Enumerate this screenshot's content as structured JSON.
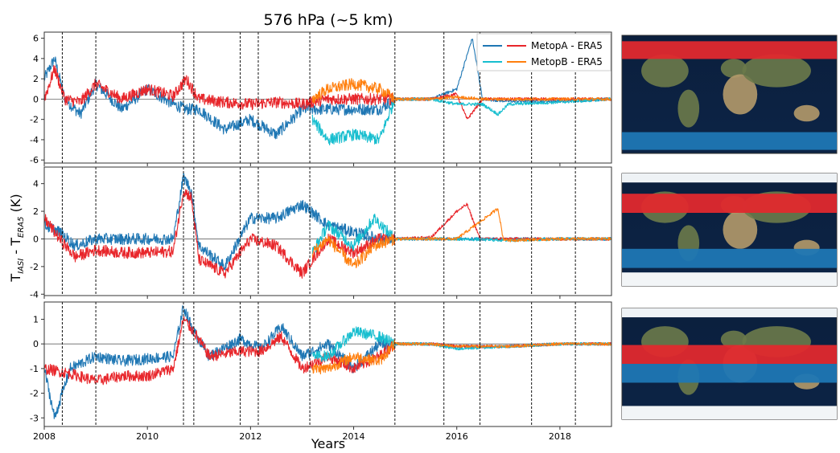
{
  "title": "576 hPa (~5 km)",
  "xlabel": "Years",
  "ylabel": "T",
  "ylabel_sub1": "IASI",
  "ylabel_mid": " - T",
  "ylabel_sub2": "ERA5",
  "ylabel_unit": " (K)",
  "colors": {
    "metopa_sh": "#1f77b4",
    "metopa_nh": "#e8262b",
    "metopb_sh": "#17becf",
    "metopb_nh": "#ff7f0e",
    "band_red": "#e0292e",
    "band_blue": "#1f77b4"
  },
  "chart_data": [
    {
      "type": "line",
      "xlim": [
        2008,
        2019
      ],
      "ylim": [
        -6.3,
        6.6
      ],
      "yticks": [
        6,
        4,
        2,
        0,
        -2,
        -4,
        -6
      ],
      "xticks": [
        2008,
        2010,
        2012,
        2014,
        2016,
        2018
      ],
      "vlines": [
        2008.35,
        2009.0,
        2010.7,
        2010.9,
        2011.8,
        2012.15,
        2013.15,
        2014.8,
        2015.75,
        2016.45,
        2017.45,
        2018.3
      ],
      "legend": {
        "placement": "top-right",
        "entries": [
          "MetopA - ERA5",
          "MetopB - ERA5"
        ]
      },
      "series": [
        {
          "name": "MetopA - ERA5",
          "x": [
            2008,
            2008.2,
            2008.4,
            2008.7,
            2009,
            2009.5,
            2010,
            2010.5,
            2010.75,
            2011,
            2011.5,
            2012,
            2012.5,
            2013,
            2013.5,
            2014,
            2014.5,
            2014.8,
            2015.5,
            2016,
            2016.3,
            2016.5,
            2017,
            2018,
            2019
          ],
          "values": [
            2,
            4,
            0,
            -1.5,
            1.5,
            -1,
            1,
            -0.5,
            -1,
            -1,
            -3,
            -2,
            -3.5,
            -1,
            -1,
            -1,
            -1,
            0,
            0,
            1,
            6,
            0,
            -0.2,
            -0.2,
            0
          ]
        },
        {
          "name": "MetopA - ERA5",
          "x": [
            2008,
            2008.2,
            2008.4,
            2008.7,
            2009,
            2009.5,
            2010,
            2010.5,
            2010.75,
            2011,
            2011.5,
            2012,
            2012.5,
            2013,
            2013.5,
            2014,
            2014.5,
            2014.8,
            2015.5,
            2016,
            2016.2,
            2016.5,
            2017,
            2018,
            2019
          ],
          "values": [
            0,
            3,
            0,
            -0.3,
            1.5,
            0,
            1,
            0.3,
            2,
            0,
            -0.3,
            -0.5,
            -0.3,
            -0.5,
            0,
            0,
            0,
            0,
            0,
            0.5,
            -2,
            0,
            0,
            0,
            0
          ]
        },
        {
          "name": "MetopB - ERA5",
          "x": [
            2013.2,
            2013.5,
            2014,
            2014.5,
            2014.8,
            2015.5,
            2016,
            2016.5,
            2016.8,
            2017,
            2018,
            2019
          ],
          "values": [
            -2,
            -4,
            -3.5,
            -4,
            0,
            0,
            -0.5,
            -0.5,
            -1.5,
            -0.5,
            -0.3,
            0
          ]
        },
        {
          "name": "MetopB - ERA5",
          "x": [
            2013.2,
            2013.5,
            2014,
            2014.5,
            2014.8,
            2015.5,
            2016,
            2016.5,
            2017,
            2018,
            2019
          ],
          "values": [
            0,
            1,
            1.5,
            1,
            0,
            0,
            0.2,
            0,
            0,
            0,
            0
          ]
        }
      ]
    },
    {
      "type": "line",
      "xlim": [
        2008,
        2019
      ],
      "ylim": [
        -4.1,
        5.2
      ],
      "yticks": [
        4,
        2,
        0,
        -2,
        -4
      ],
      "xticks": [
        2008,
        2010,
        2012,
        2014,
        2016,
        2018
      ],
      "vlines": [
        2008.35,
        2009.0,
        2010.7,
        2010.9,
        2011.8,
        2012.15,
        2013.15,
        2014.8,
        2015.75,
        2016.45,
        2017.45,
        2018.3
      ],
      "series": [
        {
          "name": "MetopA - ERA5",
          "x": [
            2008,
            2008.3,
            2008.6,
            2009,
            2009.5,
            2010,
            2010.5,
            2010.7,
            2010.85,
            2011,
            2011.5,
            2012,
            2012.5,
            2013,
            2013.5,
            2014,
            2014.5,
            2014.8,
            2015.5,
            2016,
            2016.5,
            2017,
            2018,
            2019
          ],
          "values": [
            1,
            0.5,
            -0.5,
            0,
            0,
            0,
            0,
            4.5,
            3.5,
            -0.5,
            -2,
            1.5,
            1.5,
            2.5,
            1,
            0.5,
            0,
            0,
            0,
            0,
            0,
            0,
            0,
            0
          ]
        },
        {
          "name": "MetopA - ERA5",
          "x": [
            2008,
            2008.3,
            2008.6,
            2009,
            2009.5,
            2010,
            2010.5,
            2010.7,
            2010.85,
            2011,
            2011.5,
            2012,
            2012.5,
            2013,
            2013.5,
            2014,
            2014.5,
            2014.8,
            2015.5,
            2016,
            2016.2,
            2016.45,
            2017,
            2018,
            2019
          ],
          "values": [
            1.5,
            0,
            -1.3,
            -0.8,
            -1,
            -1,
            -0.9,
            3.5,
            3,
            -1.5,
            -2.5,
            0,
            -0.5,
            -2.5,
            0,
            -1,
            0,
            0,
            0.1,
            2,
            2.5,
            0,
            0,
            0,
            0
          ]
        },
        {
          "name": "MetopB - ERA5",
          "x": [
            2013.2,
            2013.5,
            2014,
            2014.4,
            2014.8,
            2015.5,
            2016,
            2017,
            2018,
            2019
          ],
          "values": [
            -1,
            1,
            -0.5,
            1.5,
            0,
            0,
            0,
            -0.1,
            0,
            0
          ]
        },
        {
          "name": "MetopB - ERA5",
          "x": [
            2013.2,
            2013.5,
            2014,
            2014.4,
            2014.8,
            2015.5,
            2016,
            2016.8,
            2016.9,
            2017,
            2018,
            2019
          ],
          "values": [
            -1,
            0,
            -2,
            -0.5,
            0,
            0,
            0,
            2.2,
            0,
            -0.1,
            0,
            0
          ]
        }
      ]
    },
    {
      "type": "line",
      "xlim": [
        2008,
        2019
      ],
      "ylim": [
        -3.35,
        1.7
      ],
      "yticks": [
        1,
        0,
        -1,
        -2,
        -3
      ],
      "xticks": [
        2008,
        2010,
        2012,
        2014,
        2016,
        2018
      ],
      "vlines": [
        2008.35,
        2009.0,
        2010.7,
        2010.9,
        2011.8,
        2012.15,
        2013.15,
        2014.8,
        2015.75,
        2016.45,
        2017.45,
        2018.3
      ],
      "series": [
        {
          "name": "MetopA - ERA5",
          "x": [
            2008,
            2008.2,
            2008.5,
            2009,
            2009.5,
            2010,
            2010.5,
            2010.7,
            2010.9,
            2011.2,
            2011.8,
            2012.2,
            2012.6,
            2013,
            2013.5,
            2014,
            2014.5,
            2014.8,
            2015.5,
            2016,
            2017,
            2018,
            2019
          ],
          "values": [
            -1,
            -3,
            -1,
            -0.5,
            -0.7,
            -0.6,
            -0.5,
            1.5,
            0.5,
            -0.5,
            0.2,
            -0.2,
            0.7,
            -0.5,
            0,
            -1,
            0,
            0,
            0,
            -0.1,
            -0.1,
            0,
            0
          ]
        },
        {
          "name": "MetopA - ERA5",
          "x": [
            2008,
            2008.5,
            2009,
            2009.5,
            2010,
            2010.5,
            2010.7,
            2010.9,
            2011.2,
            2011.8,
            2012.2,
            2012.6,
            2013,
            2013.5,
            2014,
            2014.5,
            2014.8,
            2015.5,
            2016,
            2017,
            2018,
            2019
          ],
          "values": [
            -1,
            -1.2,
            -1.5,
            -1.3,
            -1.3,
            -1,
            1,
            0.5,
            -0.5,
            -0.3,
            -0.3,
            0.3,
            -1,
            -0.5,
            -1,
            -0.5,
            0,
            0,
            -0.1,
            -0.1,
            0,
            0
          ]
        },
        {
          "name": "MetopB - ERA5",
          "x": [
            2013.2,
            2013.5,
            2014,
            2014.5,
            2014.8,
            2015.5,
            2016,
            2017,
            2018,
            2019
          ],
          "values": [
            -0.5,
            -0.5,
            0.5,
            0.3,
            0,
            0,
            -0.2,
            -0.1,
            0,
            0
          ]
        },
        {
          "name": "MetopB - ERA5",
          "x": [
            2013.2,
            2013.5,
            2014,
            2014.5,
            2014.8,
            2015.5,
            2016,
            2017,
            2018,
            2019
          ],
          "values": [
            -1,
            -1,
            -0.5,
            -0.7,
            0,
            0,
            -0.1,
            -0.1,
            0,
            0
          ]
        }
      ]
    }
  ]
}
